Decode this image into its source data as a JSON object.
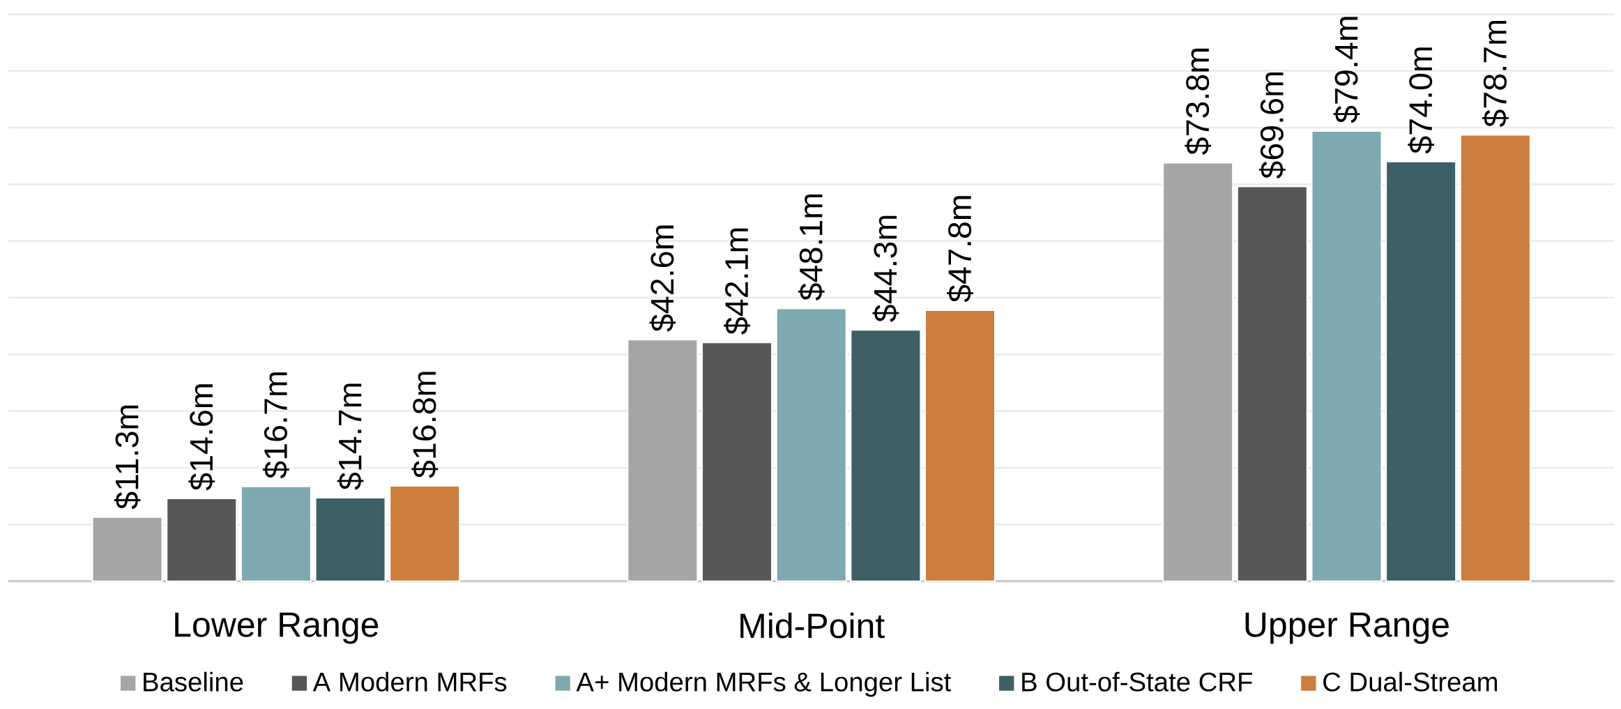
{
  "chart_data": {
    "type": "bar",
    "categories": [
      "Lower Range",
      "Mid-Point",
      "Upper Range"
    ],
    "series": [
      {
        "name": "Baseline",
        "color": "#a6a6a6",
        "values": [
          11.3,
          42.6,
          73.8
        ],
        "value_labels": [
          "$11.3m",
          "$42.6m",
          "$73.8m"
        ]
      },
      {
        "name": "A Modern MRFs",
        "color": "#575757",
        "values": [
          14.6,
          42.1,
          69.6
        ],
        "value_labels": [
          "$14.6m",
          "$42.1m",
          "$69.6m"
        ]
      },
      {
        "name": "A+ Modern MRFs & Longer List",
        "color": "#7fa9b0",
        "values": [
          16.7,
          48.1,
          79.4
        ],
        "value_labels": [
          "$16.7m",
          "$48.1m",
          "$79.4m"
        ]
      },
      {
        "name": "B Out-of-State CRF",
        "color": "#3e5f66",
        "values": [
          14.7,
          44.3,
          74.0
        ],
        "value_labels": [
          "$14.7m",
          "$44.3m",
          "$74.0m"
        ]
      },
      {
        "name": "C Dual-Stream",
        "color": "#cd7d3d",
        "values": [
          16.8,
          47.8,
          78.7
        ],
        "value_labels": [
          "$16.8m",
          "$47.8m",
          "$78.7m"
        ]
      }
    ],
    "ylim": [
      0,
      100
    ],
    "yticks": [
      {
        "value": 0,
        "label": null
      },
      {
        "value": 10,
        "label": null
      },
      {
        "value": 20,
        "label": null
      },
      {
        "value": 30,
        "label": null
      },
      {
        "value": 40,
        "label": null
      },
      {
        "value": 50,
        "label": null
      },
      {
        "value": 60,
        "label": null
      },
      {
        "value": 70,
        "label": null
      },
      {
        "value": 80,
        "label": null
      },
      {
        "value": 90,
        "label": null
      },
      {
        "value": 100,
        "label": null
      }
    ],
    "tick_labels": "x",
    "grid": "y",
    "legend": "bottom"
  }
}
